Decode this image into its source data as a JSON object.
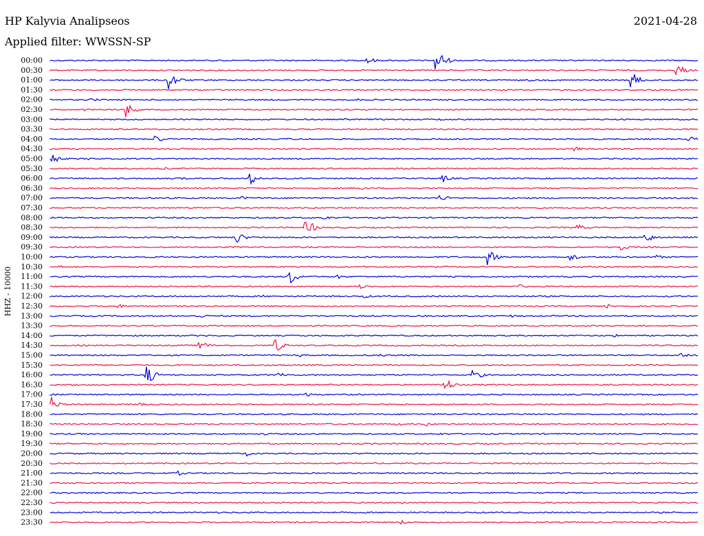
{
  "header": {
    "station": "HP Kalyvia Analipseos",
    "date": "2021-04-28",
    "filter_text": "Applied filter: WWSSN-SP"
  },
  "channel_label": "HHZ - 10000",
  "colors": {
    "trace_a": "#0000dd",
    "trace_b": "#ee1144",
    "background": "#ffffff",
    "text": "#000000"
  },
  "traces": [
    {
      "time": "00:00"
    },
    {
      "time": "00:30"
    },
    {
      "time": "01:00"
    },
    {
      "time": "01:30"
    },
    {
      "time": "02:00"
    },
    {
      "time": "02:30"
    },
    {
      "time": "03:00"
    },
    {
      "time": "03:30"
    },
    {
      "time": "04:00"
    },
    {
      "time": "04:30"
    },
    {
      "time": "05:00"
    },
    {
      "time": "05:30"
    },
    {
      "time": "06:00"
    },
    {
      "time": "06:30"
    },
    {
      "time": "07:00"
    },
    {
      "time": "07:30"
    },
    {
      "time": "08:00"
    },
    {
      "time": "08:30"
    },
    {
      "time": "09:00"
    },
    {
      "time": "09:30"
    },
    {
      "time": "10:00"
    },
    {
      "time": "10:30"
    },
    {
      "time": "11:00"
    },
    {
      "time": "11:30"
    },
    {
      "time": "12:00"
    },
    {
      "time": "12:30"
    },
    {
      "time": "13:00"
    },
    {
      "time": "13:30"
    },
    {
      "time": "14:00"
    },
    {
      "time": "14:30"
    },
    {
      "time": "15:00"
    },
    {
      "time": "15:30"
    },
    {
      "time": "16:00"
    },
    {
      "time": "16:30"
    },
    {
      "time": "17:00"
    },
    {
      "time": "17:30"
    },
    {
      "time": "18:00"
    },
    {
      "time": "18:30"
    },
    {
      "time": "19:00"
    },
    {
      "time": "19:30"
    },
    {
      "time": "20:00"
    },
    {
      "time": "20:30"
    },
    {
      "time": "21:00"
    },
    {
      "time": "21:30"
    },
    {
      "time": "22:00"
    },
    {
      "time": "22:30"
    },
    {
      "time": "23:00"
    },
    {
      "time": "23:30"
    }
  ]
}
